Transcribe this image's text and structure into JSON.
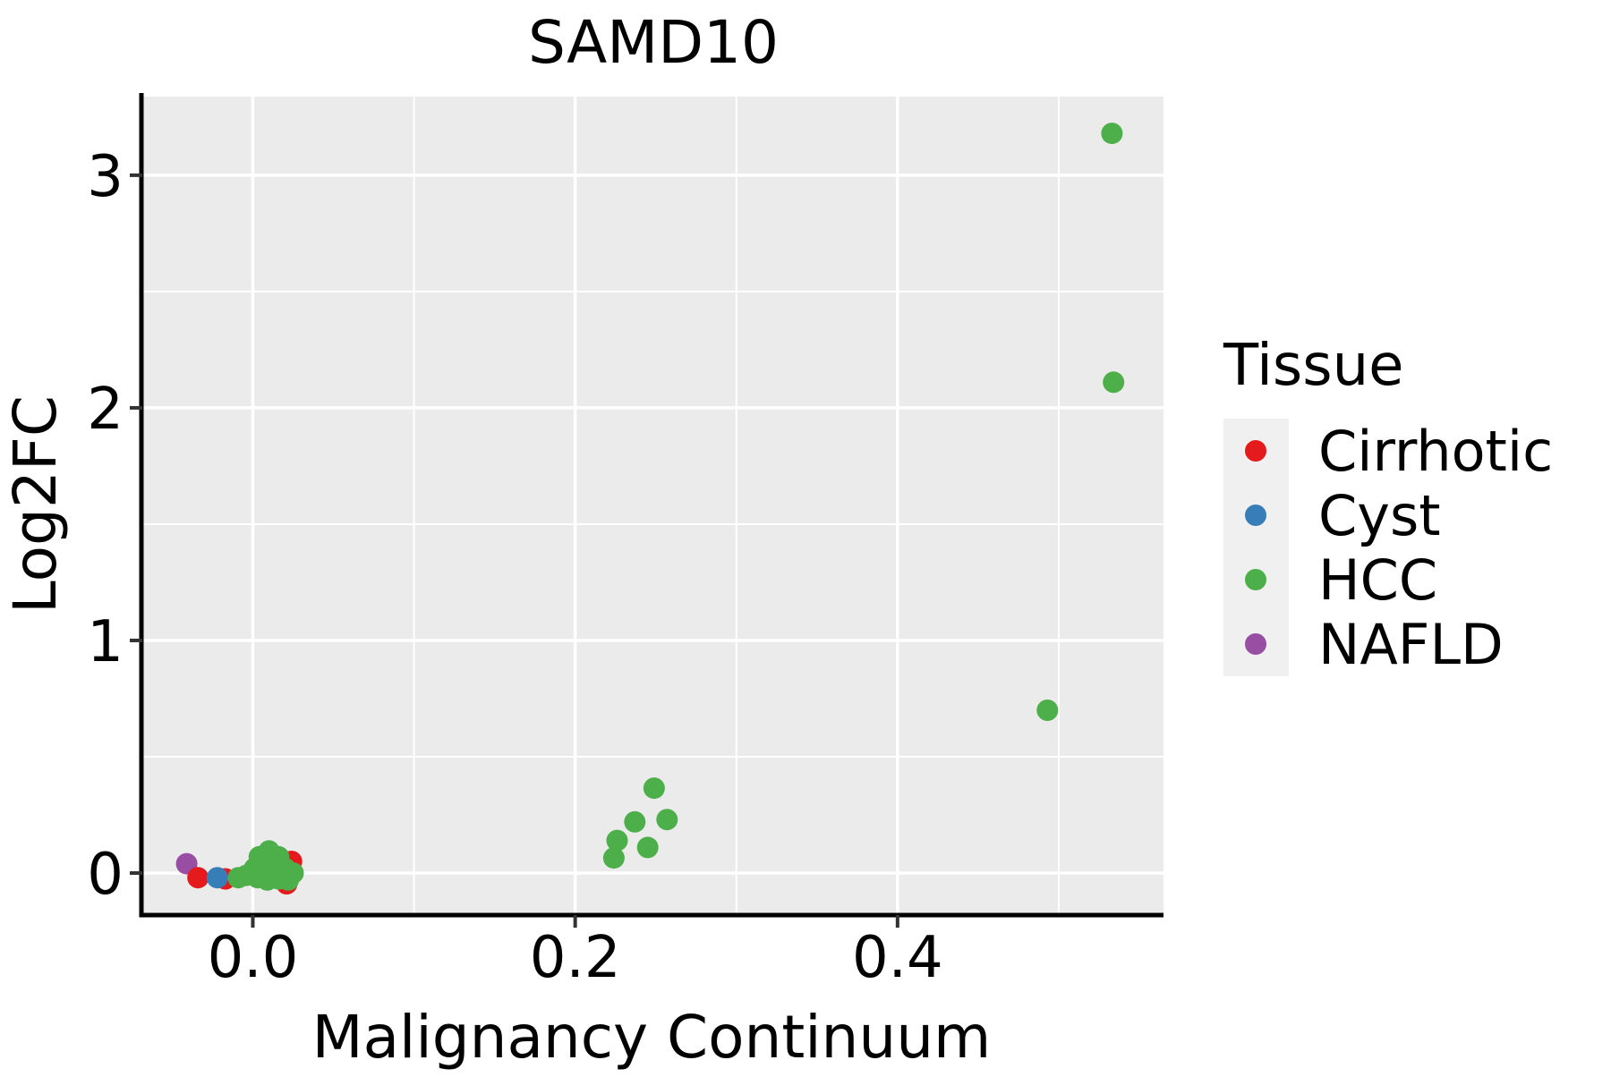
{
  "chart_data": {
    "type": "scatter",
    "title": "SAMD10",
    "xlabel": "Malignancy Continuum",
    "ylabel": "Log2FC",
    "xlim": [
      -0.068,
      0.565
    ],
    "ylim": [
      -0.173,
      3.338
    ],
    "x_major_ticks": [
      0.0,
      0.2,
      0.4
    ],
    "x_major_labels": [
      "0.0",
      "0.2",
      "0.4"
    ],
    "x_minor_ticks": [
      0.1,
      0.3,
      0.5
    ],
    "y_major_ticks": [
      0,
      1,
      2,
      3
    ],
    "y_major_labels": [
      "0",
      "1",
      "2",
      "3"
    ],
    "y_minor_ticks": [
      0.5,
      1.5,
      2.5
    ],
    "grid": true,
    "legend_position": "right",
    "colors": {
      "panel_background": "#EBEBEB",
      "gridline": "#FFFFFF",
      "axis_line": "#000000",
      "tick_mark": "#333333",
      "legend_key_background": "#F0F0F0"
    },
    "series": [
      {
        "name": "NAFLD",
        "color": "#984EA3",
        "points": [
          [
            -0.041,
            0.04
          ]
        ]
      },
      {
        "name": "Cirrhotic",
        "color": "#E41A1C",
        "points": [
          [
            -0.034,
            -0.02
          ],
          [
            -0.017,
            -0.025
          ],
          [
            0.024,
            0.05
          ],
          [
            0.021,
            -0.046
          ]
        ]
      },
      {
        "name": "Cyst",
        "color": "#377EB8",
        "points": [
          [
            -0.022,
            -0.02
          ]
        ]
      },
      {
        "name": "HCC",
        "color": "#4DAF4A",
        "points": [
          [
            -0.009,
            -0.02
          ],
          [
            -0.004,
            -0.01
          ],
          [
            0.001,
            0.02
          ],
          [
            0.003,
            -0.02
          ],
          [
            0.004,
            0.07
          ],
          [
            0.007,
            0.03
          ],
          [
            0.009,
            -0.03
          ],
          [
            0.01,
            0.095
          ],
          [
            0.013,
            0.04
          ],
          [
            0.016,
            0.07
          ],
          [
            0.016,
            -0.025
          ],
          [
            0.02,
            0.02
          ],
          [
            0.022,
            -0.03
          ],
          [
            0.025,
            0.0
          ],
          [
            0.224,
            0.065
          ],
          [
            0.226,
            0.14
          ],
          [
            0.237,
            0.22
          ],
          [
            0.245,
            0.11
          ],
          [
            0.249,
            0.365
          ],
          [
            0.257,
            0.23
          ],
          [
            0.493,
            0.7
          ],
          [
            0.534,
            2.11
          ],
          [
            0.533,
            3.18
          ]
        ]
      }
    ]
  },
  "legend": {
    "title": "Tissue",
    "entries": [
      {
        "label": "Cirrhotic",
        "color": "#E41A1C"
      },
      {
        "label": "Cyst",
        "color": "#377EB8"
      },
      {
        "label": "HCC",
        "color": "#4DAF4A"
      },
      {
        "label": "NAFLD",
        "color": "#984EA3"
      }
    ]
  }
}
